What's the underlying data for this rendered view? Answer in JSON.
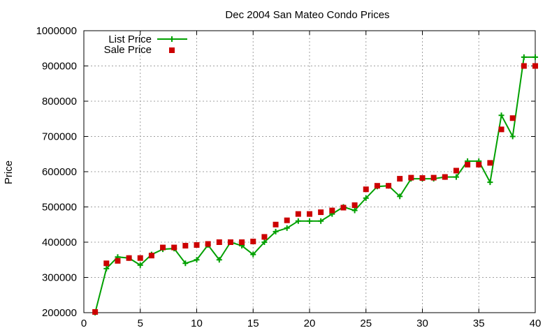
{
  "chart_data": {
    "type": "line",
    "title": "Dec 2004 San Mateo Condo Prices",
    "xlabel": "",
    "ylabel": "Price",
    "xlim": [
      0,
      40
    ],
    "ylim": [
      200000,
      1000000
    ],
    "x_ticks": [
      0,
      5,
      10,
      15,
      20,
      25,
      30,
      35,
      40
    ],
    "y_ticks": [
      200000,
      300000,
      400000,
      500000,
      600000,
      700000,
      800000,
      900000,
      1000000
    ],
    "x_tick_labels": [
      "0",
      "5",
      "10",
      "15",
      "20",
      "25",
      "30",
      "35",
      "40"
    ],
    "y_tick_labels": [
      "200000",
      "300000",
      "400000",
      "500000",
      "600000",
      "700000",
      "800000",
      "900000",
      "1000000"
    ],
    "grid": true,
    "legend_position": "top-left",
    "series": [
      {
        "name": "List Price",
        "style": "lines+points",
        "marker": "plus",
        "color": "#00a000",
        "x": [
          1,
          2,
          3,
          4,
          5,
          6,
          7,
          8,
          9,
          10,
          11,
          12,
          13,
          14,
          15,
          16,
          17,
          18,
          19,
          20,
          21,
          22,
          23,
          24,
          25,
          26,
          27,
          28,
          29,
          30,
          31,
          32,
          33,
          34,
          35,
          36,
          37,
          38,
          39,
          40
        ],
        "values": [
          200000,
          325000,
          358000,
          355000,
          335000,
          365000,
          380000,
          382000,
          340000,
          350000,
          392000,
          350000,
          400000,
          390000,
          365000,
          400000,
          430000,
          440000,
          460000,
          460000,
          460000,
          480000,
          500000,
          490000,
          525000,
          558000,
          560000,
          530000,
          580000,
          580000,
          580000,
          585000,
          585000,
          630000,
          630000,
          570000,
          760000,
          700000,
          925000,
          925000
        ]
      },
      {
        "name": "Sale Price",
        "style": "points",
        "marker": "square",
        "color": "#cc0000",
        "x": [
          1,
          2,
          3,
          4,
          5,
          6,
          7,
          8,
          9,
          10,
          11,
          12,
          13,
          14,
          15,
          16,
          17,
          18,
          19,
          20,
          21,
          22,
          23,
          24,
          25,
          26,
          27,
          28,
          29,
          30,
          31,
          32,
          33,
          34,
          35,
          36,
          37,
          38,
          39,
          40
        ],
        "values": [
          202000,
          340000,
          347000,
          355000,
          355000,
          362000,
          385000,
          385000,
          390000,
          392000,
          395000,
          400000,
          400000,
          400000,
          402000,
          415000,
          450000,
          462000,
          480000,
          480000,
          485000,
          490000,
          498000,
          505000,
          550000,
          560000,
          560000,
          580000,
          583000,
          582000,
          583000,
          585000,
          603000,
          620000,
          620000,
          625000,
          720000,
          752000,
          900000,
          900000
        ]
      }
    ]
  }
}
